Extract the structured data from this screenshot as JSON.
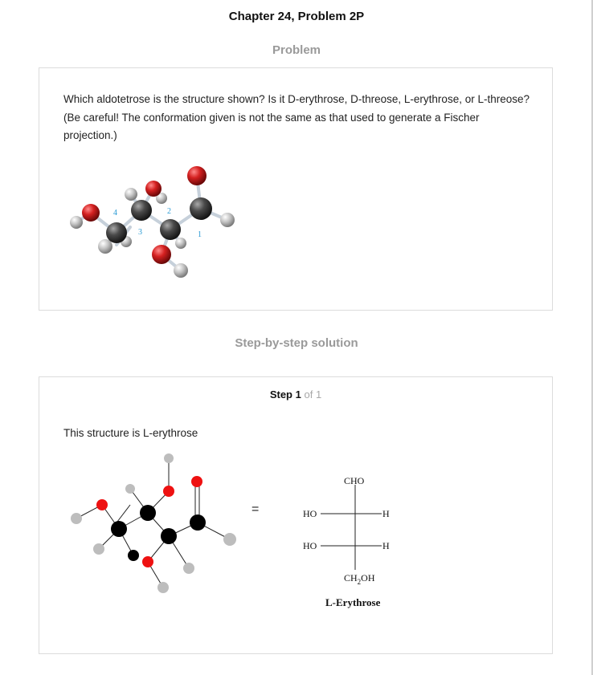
{
  "page": {
    "title": "Chapter 24, Problem 2P"
  },
  "problem": {
    "heading": "Problem",
    "text": "Which aldotetrose is the structure shown? Is it D-erythrose, D-threose, L-erythrose, or L-threose? (Be careful! The conformation given is not the same as that used to generate a Fischer projection.)",
    "carbon_numbers": [
      "4",
      "3",
      "2",
      "1"
    ]
  },
  "solution": {
    "heading": "Step-by-step solution",
    "step_word": "Step",
    "step_number": "1",
    "step_of": "of 1",
    "answer_text": "This structure is L-erythrose",
    "equals": "=",
    "fischer": {
      "top": "CHO",
      "rows": [
        {
          "left": "HO",
          "right": "H"
        },
        {
          "left": "HO",
          "right": "H"
        }
      ],
      "bottom_main": "CH",
      "bottom_sub": "2",
      "bottom_end": "OH",
      "name": "L-Erythrose"
    }
  },
  "colors": {
    "oxygen": "#c41a1a",
    "carbon": "#3a3a3a",
    "hydrogen": "#bdbdbd",
    "bond": "#c9d3dc",
    "label": "#2a9ad4"
  }
}
